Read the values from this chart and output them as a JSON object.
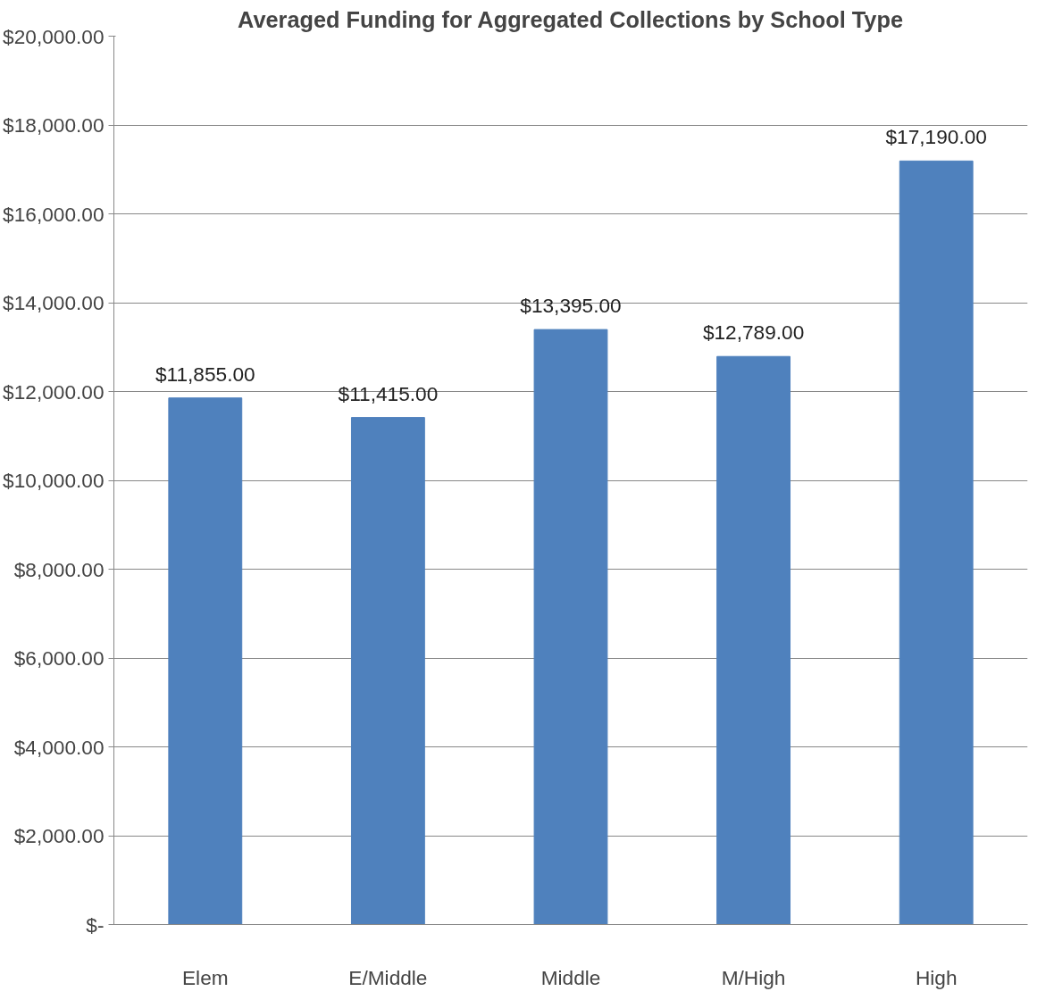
{
  "chart_data": {
    "type": "bar",
    "title": "Averaged Funding for Aggregated Collections by School Type",
    "categories": [
      "Elem",
      "E/Middle",
      "Middle",
      "M/High",
      "High"
    ],
    "values": [
      11855,
      11415,
      13395,
      12789,
      17190
    ],
    "value_labels": [
      "$11,855.00",
      "$11,415.00",
      "$13,395.00",
      "$12,789.00",
      "$17,190.00"
    ],
    "color": "#4f81bd",
    "ylim": [
      0,
      20000
    ],
    "yticks": [
      {
        "value": 0,
        "label": "$-"
      },
      {
        "value": 2000,
        "label": "$2,000.00"
      },
      {
        "value": 4000,
        "label": "$4,000.00"
      },
      {
        "value": 6000,
        "label": "$6,000.00"
      },
      {
        "value": 8000,
        "label": "$8,000.00"
      },
      {
        "value": 10000,
        "label": "$10,000.00"
      },
      {
        "value": 12000,
        "label": "$12,000.00"
      },
      {
        "value": 14000,
        "label": "$14,000.00"
      },
      {
        "value": 16000,
        "label": "$16,000.00"
      },
      {
        "value": 18000,
        "label": "$18,000.00"
      },
      {
        "value": 20000,
        "label": "$20,000.00"
      }
    ],
    "grid": "y"
  }
}
